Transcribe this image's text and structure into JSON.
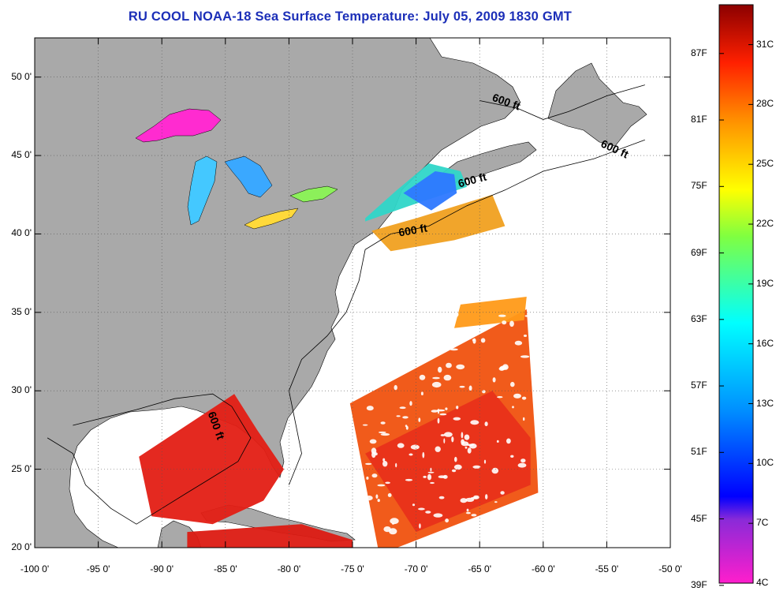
{
  "title": "RU COOL  NOAA-18  Sea Surface Temperature:  July 05, 2009 1830 GMT",
  "map": {
    "latitude_labels": [
      "50 0'",
      "45 0'",
      "40 0'",
      "35 0'",
      "30 0'",
      "25 0'",
      "20 0'"
    ],
    "longitude_labels": [
      "-100 0'",
      "-95 0'",
      "-90 0'",
      "-85 0'",
      "-80 0'",
      "-75 0'",
      "-70 0'",
      "-65 0'",
      "-60 0'",
      "-55 0'",
      "-50 0'"
    ],
    "lat_range": [
      20,
      52.5
    ],
    "lon_range": [
      -100,
      -50
    ],
    "isobath_labels": [
      "600 ft",
      "600 ft",
      "600 ft",
      "600 ft",
      "600 ft"
    ],
    "colors": {
      "land": "#a9a9a9",
      "no_data": "#ffffff",
      "warm": "#e81a12",
      "mid": "#f58a10"
    }
  },
  "colorbar": {
    "fahrenheit_labels": [
      "87F",
      "81F",
      "75F",
      "69F",
      "63F",
      "57F",
      "51F",
      "45F",
      "39F"
    ],
    "celsius_labels": [
      "31C",
      "28C",
      "25C",
      "22C",
      "19C",
      "16C",
      "13C",
      "10C",
      "7C",
      "4C"
    ],
    "range_c": [
      4,
      33
    ]
  }
}
